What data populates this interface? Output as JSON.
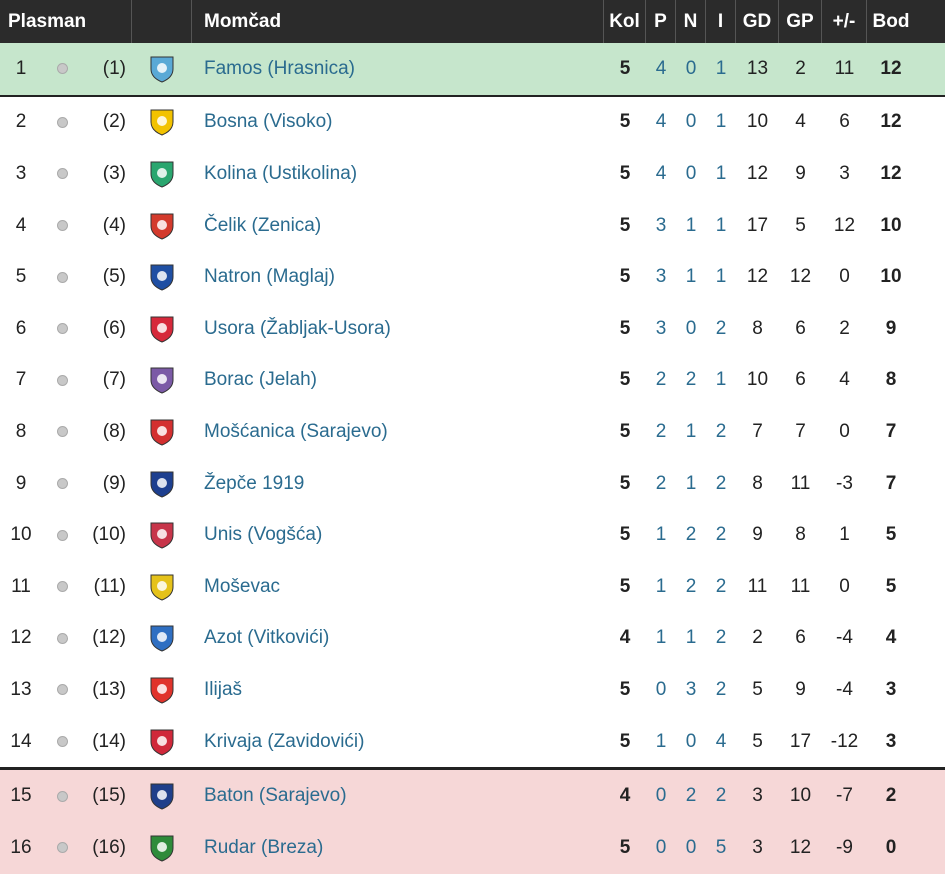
{
  "headers": {
    "plasman": "Plasman",
    "team": "Momčad",
    "kol": "Kol",
    "p": "P",
    "n": "N",
    "i": "I",
    "gd": "GD",
    "gp": "GP",
    "diff": "+/-",
    "bod": "Bod"
  },
  "rows": [
    {
      "pos": "1",
      "prev": "(1)",
      "team": "Famos (Hrasnica)",
      "kol": "5",
      "p": "4",
      "n": "0",
      "i": "1",
      "gd": "13",
      "gp": "2",
      "diff": "11",
      "bod": "12",
      "zone": "promo",
      "color": "#5aa9d6"
    },
    {
      "pos": "2",
      "prev": "(2)",
      "team": "Bosna (Visoko)",
      "kol": "5",
      "p": "4",
      "n": "0",
      "i": "1",
      "gd": "10",
      "gp": "4",
      "diff": "6",
      "bod": "12",
      "zone": "",
      "color": "#f2c200"
    },
    {
      "pos": "3",
      "prev": "(3)",
      "team": "Kolina (Ustikolina)",
      "kol": "5",
      "p": "4",
      "n": "0",
      "i": "1",
      "gd": "12",
      "gp": "9",
      "diff": "3",
      "bod": "12",
      "zone": "",
      "color": "#2aa66f"
    },
    {
      "pos": "4",
      "prev": "(4)",
      "team": "Čelik (Zenica)",
      "kol": "5",
      "p": "3",
      "n": "1",
      "i": "1",
      "gd": "17",
      "gp": "5",
      "diff": "12",
      "bod": "10",
      "zone": "",
      "color": "#d33a2c"
    },
    {
      "pos": "5",
      "prev": "(5)",
      "team": "Natron (Maglaj)",
      "kol": "5",
      "p": "3",
      "n": "1",
      "i": "1",
      "gd": "12",
      "gp": "12",
      "diff": "0",
      "bod": "10",
      "zone": "",
      "color": "#1f4fa3"
    },
    {
      "pos": "6",
      "prev": "(6)",
      "team": "Usora (Žabljak-Usora)",
      "kol": "5",
      "p": "3",
      "n": "0",
      "i": "2",
      "gd": "8",
      "gp": "6",
      "diff": "2",
      "bod": "9",
      "zone": "",
      "color": "#d6283a"
    },
    {
      "pos": "7",
      "prev": "(7)",
      "team": "Borac (Jelah)",
      "kol": "5",
      "p": "2",
      "n": "2",
      "i": "1",
      "gd": "10",
      "gp": "6",
      "diff": "4",
      "bod": "8",
      "zone": "",
      "color": "#7b5aa6"
    },
    {
      "pos": "8",
      "prev": "(8)",
      "team": "Mošćanica (Sarajevo)",
      "kol": "5",
      "p": "2",
      "n": "1",
      "i": "2",
      "gd": "7",
      "gp": "7",
      "diff": "0",
      "bod": "7",
      "zone": "",
      "color": "#d32f2f"
    },
    {
      "pos": "9",
      "prev": "(9)",
      "team": "Žepče 1919",
      "kol": "5",
      "p": "2",
      "n": "1",
      "i": "2",
      "gd": "8",
      "gp": "11",
      "diff": "-3",
      "bod": "7",
      "zone": "",
      "color": "#1d3f8f"
    },
    {
      "pos": "10",
      "prev": "(10)",
      "team": "Unis (Vogšća)",
      "kol": "5",
      "p": "1",
      "n": "2",
      "i": "2",
      "gd": "9",
      "gp": "8",
      "diff": "1",
      "bod": "5",
      "zone": "",
      "color": "#c7354a"
    },
    {
      "pos": "11",
      "prev": "(11)",
      "team": "Moševac",
      "kol": "5",
      "p": "1",
      "n": "2",
      "i": "2",
      "gd": "11",
      "gp": "11",
      "diff": "0",
      "bod": "5",
      "zone": "",
      "color": "#e5c21a"
    },
    {
      "pos": "12",
      "prev": "(12)",
      "team": "Azot (Vitkovići)",
      "kol": "4",
      "p": "1",
      "n": "1",
      "i": "2",
      "gd": "2",
      "gp": "6",
      "diff": "-4",
      "bod": "4",
      "zone": "",
      "color": "#2f6fc2"
    },
    {
      "pos": "13",
      "prev": "(13)",
      "team": "Ilijaš",
      "kol": "5",
      "p": "0",
      "n": "3",
      "i": "2",
      "gd": "5",
      "gp": "9",
      "diff": "-4",
      "bod": "3",
      "zone": "",
      "color": "#e0332b"
    },
    {
      "pos": "14",
      "prev": "(14)",
      "team": "Krivaja (Zavidovići)",
      "kol": "5",
      "p": "1",
      "n": "0",
      "i": "4",
      "gd": "5",
      "gp": "17",
      "diff": "-12",
      "bod": "3",
      "zone": "",
      "color": "#d0283a"
    },
    {
      "pos": "15",
      "prev": "(15)",
      "team": "Baton (Sarajevo)",
      "kol": "4",
      "p": "0",
      "n": "2",
      "i": "2",
      "gd": "3",
      "gp": "10",
      "diff": "-7",
      "bod": "2",
      "zone": "releg",
      "color": "#1f3f8a"
    },
    {
      "pos": "16",
      "prev": "(16)",
      "team": "Rudar (Breza)",
      "kol": "5",
      "p": "0",
      "n": "0",
      "i": "5",
      "gd": "3",
      "gp": "12",
      "diff": "-9",
      "bod": "0",
      "zone": "releg",
      "color": "#2e8b3a"
    }
  ]
}
